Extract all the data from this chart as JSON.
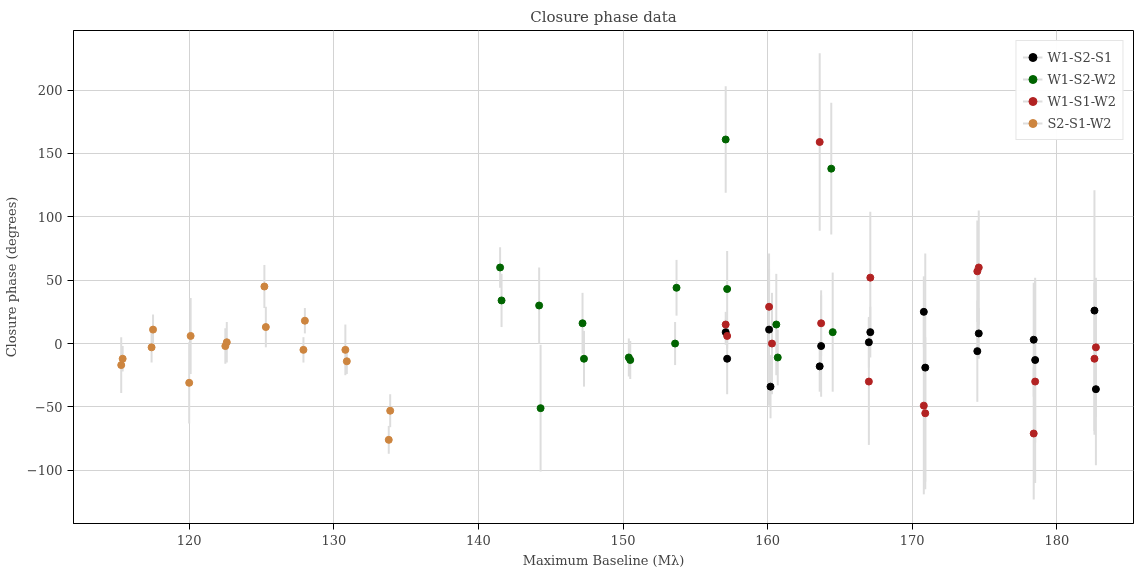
{
  "chart_data": {
    "type": "scatter",
    "title": "Closure phase data",
    "xlabel": "Maximum Baseline (Mλ)",
    "ylabel": "Closure phase (degrees)",
    "xlim": [
      112,
      185.3
    ],
    "ylim": [
      -142,
      247
    ],
    "xticks": [
      120,
      130,
      140,
      150,
      160,
      170,
      180
    ],
    "yticks": [
      -100,
      -50,
      0,
      50,
      100,
      150,
      200
    ],
    "grid": true,
    "legend": "top right",
    "marker": "circle",
    "series": [
      {
        "name": "W1-S2-S1",
        "color": "#000000",
        "x": [
          157.1,
          157.2,
          160.1,
          160.2,
          163.6,
          163.7,
          167.0,
          167.1,
          170.8,
          170.9,
          174.5,
          174.6,
          178.4,
          178.5,
          182.6,
          182.7
        ],
        "values": [
          9,
          -12,
          11,
          -34,
          -18,
          -2,
          1,
          9,
          25,
          -19,
          -6,
          8,
          3,
          -13,
          26,
          -36
        ],
        "errors": [
          10,
          28,
          60,
          25,
          20,
          40,
          20,
          20,
          28,
          90,
          40,
          20,
          45,
          65,
          95,
          60
        ]
      },
      {
        "name": "W1-S2-W2",
        "color": "#006400",
        "x": [
          141.5,
          141.6,
          144.2,
          144.3,
          147.2,
          147.3,
          150.4,
          150.5,
          153.6,
          153.7,
          157.1,
          157.2,
          160.6,
          160.7,
          164.4,
          164.5
        ],
        "values": [
          60,
          34,
          30,
          -51,
          16,
          -12,
          -11,
          -13,
          0,
          44,
          161,
          43,
          15,
          -11,
          138,
          9
        ],
        "errors": [
          16,
          21,
          30,
          50,
          24,
          22,
          15,
          15,
          17,
          22,
          42,
          30,
          40,
          22,
          52,
          47
        ]
      },
      {
        "name": "W1-S1-W2",
        "color": "#b22222",
        "x": [
          157.1,
          157.2,
          160.1,
          160.3,
          163.6,
          163.7,
          167.0,
          167.1,
          170.8,
          170.9,
          174.5,
          174.6,
          178.4,
          178.5,
          182.6,
          182.7
        ],
        "values": [
          15,
          6,
          29,
          0,
          159,
          16,
          -30,
          52,
          -49,
          -55,
          57,
          60,
          -71,
          -30,
          -12,
          -3
        ],
        "errors": [
          10,
          10,
          30,
          40,
          70,
          26,
          50,
          52,
          70,
          60,
          40,
          45,
          52,
          80,
          60,
          55
        ]
      },
      {
        "name": "S2-S1-W2",
        "color": "#cd853f",
        "x": [
          115.3,
          115.4,
          117.4,
          117.5,
          120.0,
          120.1,
          122.5,
          122.6,
          125.2,
          125.3,
          127.9,
          128.0,
          130.8,
          130.9,
          133.8,
          133.9
        ],
        "values": [
          -17,
          -12,
          -3,
          11,
          -31,
          6,
          -2,
          1,
          45,
          13,
          -5,
          18,
          -5,
          -14,
          -76,
          -53
        ],
        "errors": [
          22,
          10,
          12,
          12,
          32,
          30,
          14,
          16,
          17,
          16,
          10,
          10,
          20,
          10,
          11,
          13
        ]
      }
    ]
  }
}
